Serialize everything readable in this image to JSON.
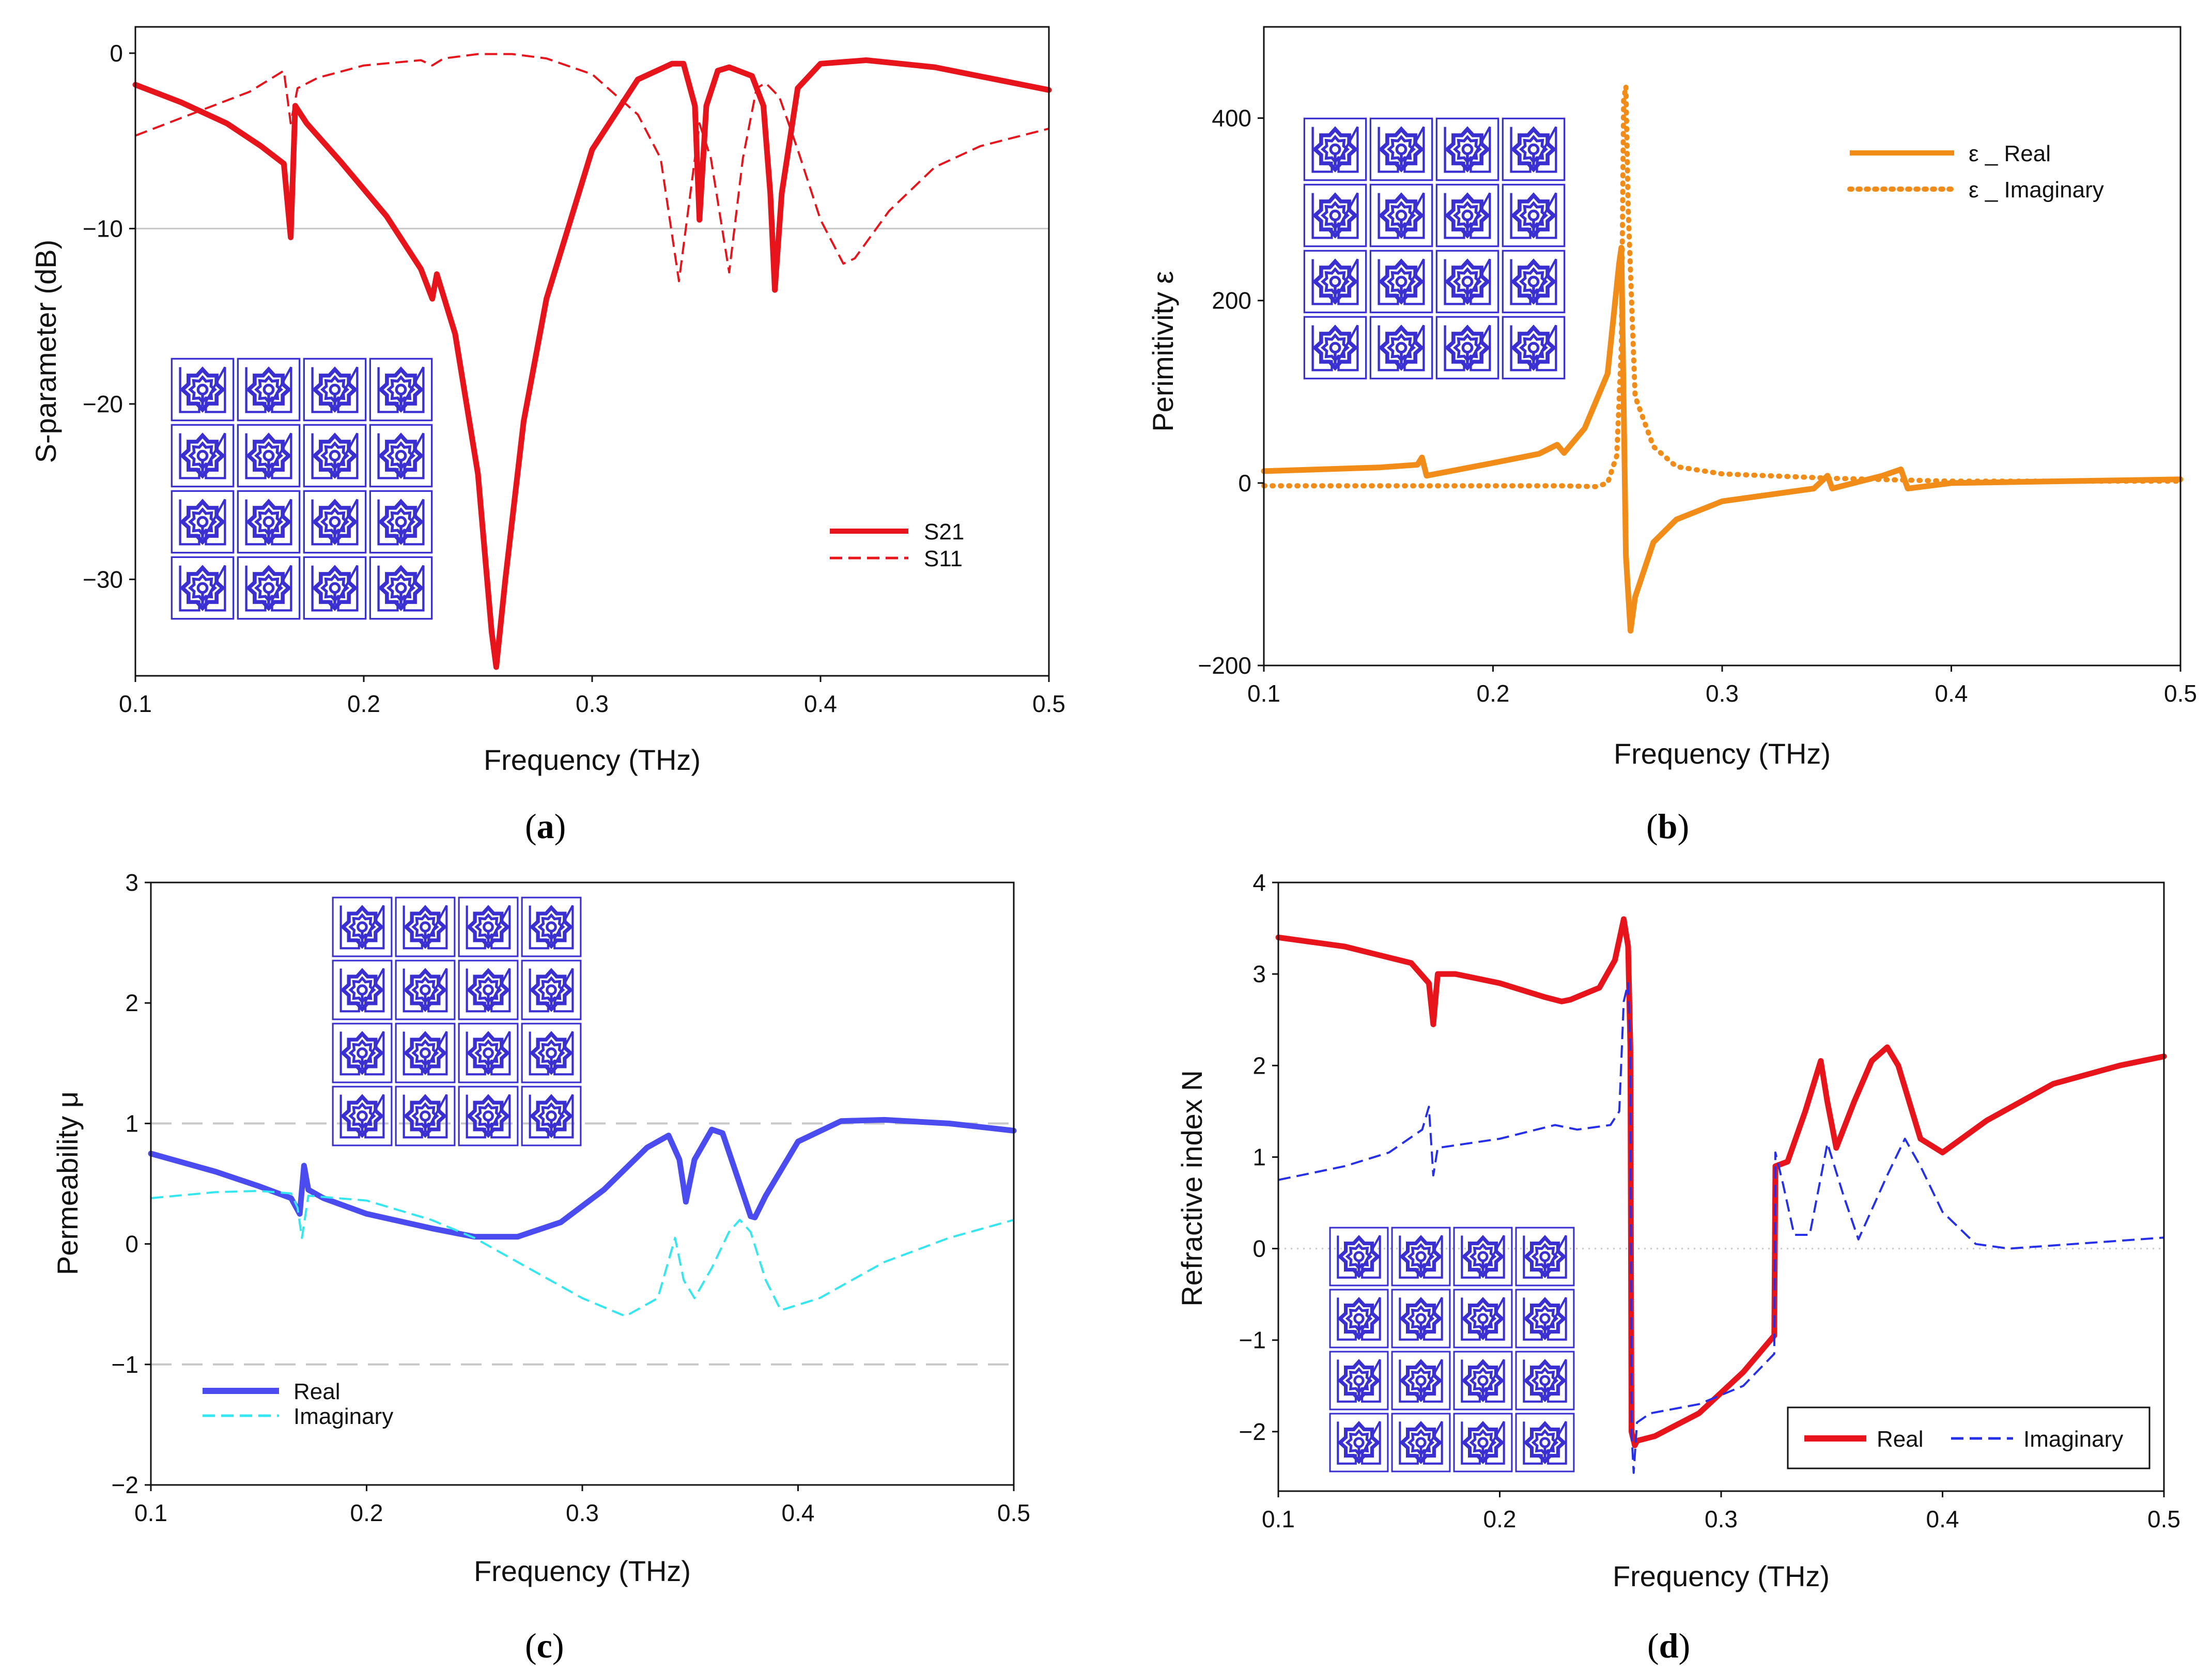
{
  "figure": {
    "captions": [
      "a",
      "b",
      "c",
      "d"
    ],
    "palette": {
      "red": "#e8141c",
      "orange": "#f28c18",
      "blue": "#4a4cf0",
      "cyan": "#33e6f0",
      "darkblue": "#2530e8",
      "motif": "#3a2fd0",
      "grid": "#c8c8c8"
    }
  },
  "chart_data": [
    {
      "id": "a",
      "type": "line",
      "title": "",
      "xlabel": "Frequency (THz)",
      "ylabel": "S-parameter (dB)",
      "xlim": [
        0.1,
        0.5
      ],
      "ylim": [
        -35.5,
        1.5
      ],
      "xticks": [
        0.1,
        0.2,
        0.3,
        0.4,
        0.5
      ],
      "xtick_labels": [
        "0.1",
        "0.2",
        "0.3",
        "0.4",
        "0.5"
      ],
      "yticks": [
        0,
        -10,
        -20,
        -30
      ],
      "ytick_labels": [
        "0",
        "-10",
        "-20",
        "-30"
      ],
      "hlines": [
        -10
      ],
      "legend": "center-right",
      "inset": "lower-left",
      "series": [
        {
          "name": "S21",
          "style": "solid",
          "color": "#e8141c",
          "x": [
            0.1,
            0.12,
            0.14,
            0.155,
            0.165,
            0.168,
            0.17,
            0.175,
            0.19,
            0.21,
            0.225,
            0.23,
            0.232,
            0.24,
            0.25,
            0.256,
            0.258,
            0.262,
            0.27,
            0.28,
            0.3,
            0.32,
            0.335,
            0.34,
            0.345,
            0.347,
            0.35,
            0.355,
            0.36,
            0.37,
            0.375,
            0.378,
            0.38,
            0.383,
            0.39,
            0.4,
            0.42,
            0.45,
            0.5
          ],
          "y": [
            -1.8,
            -2.8,
            -4.0,
            -5.3,
            -6.3,
            -10.5,
            -3.0,
            -4.0,
            -6.2,
            -9.3,
            -12.3,
            -14.0,
            -12.6,
            -16.0,
            -24.0,
            -33.0,
            -35.0,
            -30.0,
            -21.0,
            -14.0,
            -5.5,
            -1.5,
            -0.6,
            -0.6,
            -3.0,
            -9.5,
            -3.0,
            -1.0,
            -0.8,
            -1.3,
            -3.0,
            -8.0,
            -13.5,
            -8.0,
            -2.0,
            -0.6,
            -0.4,
            -0.8,
            -2.1
          ]
        },
        {
          "name": "S11",
          "style": "dashed",
          "color": "#e8141c",
          "x": [
            0.1,
            0.13,
            0.15,
            0.165,
            0.168,
            0.171,
            0.18,
            0.2,
            0.225,
            0.23,
            0.235,
            0.25,
            0.265,
            0.28,
            0.3,
            0.32,
            0.33,
            0.338,
            0.344,
            0.347,
            0.352,
            0.36,
            0.366,
            0.372,
            0.376,
            0.382,
            0.39,
            0.4,
            0.41,
            0.415,
            0.43,
            0.45,
            0.47,
            0.5
          ],
          "y": [
            -4.7,
            -3.2,
            -2.2,
            -1.0,
            -4.0,
            -2.0,
            -1.4,
            -0.7,
            -0.4,
            -0.7,
            -0.3,
            -0.05,
            -0.05,
            -0.3,
            -1.2,
            -3.5,
            -6.0,
            -13.0,
            -7.0,
            -4.0,
            -6.0,
            -12.5,
            -6.0,
            -2.0,
            -1.7,
            -2.5,
            -5.5,
            -9.5,
            -12.0,
            -11.7,
            -9.0,
            -6.5,
            -5.3,
            -4.3
          ]
        }
      ],
      "legend_entries": [
        "S21",
        "S11"
      ]
    },
    {
      "id": "b",
      "type": "line",
      "title": "",
      "xlabel": "Frequency (THz)",
      "ylabel": "Perimitivity ε",
      "xlim": [
        0.1,
        0.5
      ],
      "ylim": [
        -200,
        500
      ],
      "xticks": [
        0.1,
        0.2,
        0.3,
        0.4,
        0.5
      ],
      "xtick_labels": [
        "0.1",
        "0.2",
        "0.3",
        "0.4",
        "0.5"
      ],
      "yticks": [
        -200,
        0,
        200,
        400
      ],
      "ytick_labels": [
        "-200",
        "0",
        "200",
        "400"
      ],
      "legend": "top-right",
      "inset": "top-left",
      "series": [
        {
          "name": "ε _ Real",
          "style": "solid",
          "color": "#f28c18",
          "x": [
            0.1,
            0.15,
            0.167,
            0.169,
            0.171,
            0.2,
            0.22,
            0.228,
            0.231,
            0.24,
            0.25,
            0.255,
            0.256,
            0.258,
            0.26,
            0.262,
            0.27,
            0.28,
            0.3,
            0.34,
            0.346,
            0.348,
            0.37,
            0.378,
            0.381,
            0.4,
            0.45,
            0.5
          ],
          "y": [
            13,
            17,
            20,
            28,
            8,
            22,
            32,
            42,
            33,
            60,
            120,
            240,
            258,
            -80,
            -162,
            -125,
            -65,
            -40,
            -20,
            -6,
            8,
            -6,
            8,
            15,
            -6,
            0,
            2,
            4
          ]
        },
        {
          "name": "ε _ Imaginary",
          "style": "dotted",
          "color": "#f28c18",
          "x": [
            0.1,
            0.2,
            0.23,
            0.245,
            0.25,
            0.254,
            0.256,
            0.257,
            0.258,
            0.259,
            0.262,
            0.27,
            0.28,
            0.3,
            0.35,
            0.4,
            0.5
          ],
          "y": [
            -3,
            -3,
            -3,
            -4,
            0,
            30,
            150,
            420,
            435,
            300,
            95,
            40,
            18,
            10,
            5,
            2,
            2
          ]
        }
      ],
      "legend_entries": [
        "ε _ Real",
        "ε _ Imaginary"
      ]
    },
    {
      "id": "c",
      "type": "line",
      "title": "",
      "xlabel": "Frequency (THz)",
      "ylabel": "Permeability μ",
      "xlim": [
        0.1,
        0.5
      ],
      "ylim": [
        -2,
        3
      ],
      "xticks": [
        0.1,
        0.2,
        0.3,
        0.4,
        0.5
      ],
      "xtick_labels": [
        "0.1",
        "0.2",
        "0.3",
        "0.4",
        "0.5"
      ],
      "yticks": [
        -2,
        -1,
        0,
        1,
        2,
        3
      ],
      "ytick_labels": [
        "-2",
        "-1",
        "0",
        "1",
        "2",
        "3"
      ],
      "hlines": [
        1,
        -1
      ],
      "legend": "lower-left",
      "inset": "top-center",
      "series": [
        {
          "name": "Real",
          "style": "solid",
          "color": "#4a4cf0",
          "x": [
            0.1,
            0.13,
            0.15,
            0.165,
            0.169,
            0.171,
            0.173,
            0.18,
            0.2,
            0.23,
            0.25,
            0.27,
            0.29,
            0.31,
            0.33,
            0.34,
            0.345,
            0.348,
            0.352,
            0.36,
            0.365,
            0.372,
            0.378,
            0.38,
            0.385,
            0.4,
            0.42,
            0.44,
            0.47,
            0.5
          ],
          "y": [
            0.75,
            0.6,
            0.48,
            0.38,
            0.25,
            0.65,
            0.45,
            0.38,
            0.25,
            0.13,
            0.06,
            0.06,
            0.18,
            0.45,
            0.8,
            0.9,
            0.7,
            0.35,
            0.7,
            0.95,
            0.92,
            0.55,
            0.23,
            0.22,
            0.4,
            0.85,
            1.02,
            1.03,
            1.0,
            0.94
          ]
        },
        {
          "name": "Imaginary",
          "style": "dashed",
          "color": "#33e6f0",
          "x": [
            0.1,
            0.13,
            0.15,
            0.165,
            0.168,
            0.17,
            0.173,
            0.2,
            0.23,
            0.25,
            0.27,
            0.3,
            0.32,
            0.335,
            0.343,
            0.347,
            0.352,
            0.36,
            0.368,
            0.373,
            0.378,
            0.385,
            0.392,
            0.41,
            0.44,
            0.47,
            0.5
          ],
          "y": [
            0.38,
            0.43,
            0.44,
            0.42,
            0.3,
            0.05,
            0.4,
            0.36,
            0.2,
            0.05,
            -0.15,
            -0.45,
            -0.6,
            -0.45,
            0.05,
            -0.3,
            -0.45,
            -0.2,
            0.1,
            0.2,
            0.1,
            -0.3,
            -0.55,
            -0.45,
            -0.15,
            0.05,
            0.2
          ]
        }
      ],
      "legend_entries": [
        "Real",
        "Imaginary"
      ]
    },
    {
      "id": "d",
      "type": "line",
      "title": "",
      "xlabel": "Frequency (THz)",
      "ylabel": "Refractive index N",
      "xlim": [
        0.1,
        0.5
      ],
      "ylim": [
        -2.65,
        4
      ],
      "xticks": [
        0.1,
        0.2,
        0.3,
        0.4,
        0.5
      ],
      "xtick_labels": [
        "0.1",
        "0.2",
        "0.3",
        "0.4",
        "0.5"
      ],
      "yticks": [
        -2,
        -1,
        0,
        1,
        2,
        3,
        4
      ],
      "ytick_labels": [
        "-2",
        "-1",
        "0",
        "1",
        "2",
        "3",
        "4"
      ],
      "hlines": [
        0
      ],
      "legend": "bottom-right",
      "inset": "bottom-left",
      "series": [
        {
          "name": "Real",
          "style": "solid",
          "color": "#e8141c",
          "x": [
            0.1,
            0.13,
            0.16,
            0.168,
            0.17,
            0.172,
            0.18,
            0.2,
            0.22,
            0.228,
            0.232,
            0.245,
            0.252,
            0.256,
            0.258,
            0.259,
            0.2595,
            0.261,
            0.262,
            0.27,
            0.29,
            0.31,
            0.324,
            0.3245,
            0.33,
            0.338,
            0.345,
            0.348,
            0.352,
            0.36,
            0.368,
            0.375,
            0.38,
            0.39,
            0.4,
            0.42,
            0.45,
            0.48,
            0.5
          ],
          "y": [
            3.4,
            3.3,
            3.12,
            2.9,
            2.45,
            3.0,
            3.0,
            2.9,
            2.75,
            2.7,
            2.72,
            2.85,
            3.15,
            3.6,
            3.3,
            2.2,
            -2.0,
            -2.15,
            -2.1,
            -2.05,
            -1.8,
            -1.35,
            -0.95,
            0.9,
            0.95,
            1.5,
            2.05,
            1.6,
            1.1,
            1.6,
            2.05,
            2.2,
            2.0,
            1.2,
            1.05,
            1.4,
            1.8,
            2.0,
            2.1
          ]
        },
        {
          "name": "Imaginary",
          "style": "dashed",
          "color": "#2530e8",
          "x": [
            0.1,
            0.13,
            0.15,
            0.165,
            0.168,
            0.17,
            0.172,
            0.2,
            0.225,
            0.235,
            0.25,
            0.254,
            0.256,
            0.258,
            0.259,
            0.2595,
            0.2605,
            0.262,
            0.268,
            0.29,
            0.31,
            0.324,
            0.3245,
            0.328,
            0.333,
            0.34,
            0.348,
            0.355,
            0.362,
            0.375,
            0.383,
            0.39,
            0.4,
            0.415,
            0.43,
            0.5
          ],
          "y": [
            0.75,
            0.9,
            1.05,
            1.3,
            1.55,
            0.8,
            1.1,
            1.2,
            1.35,
            1.3,
            1.35,
            1.5,
            2.7,
            2.9,
            2.2,
            -2.0,
            -2.45,
            -1.9,
            -1.8,
            -1.7,
            -1.5,
            -1.15,
            1.05,
            0.7,
            0.15,
            0.15,
            1.15,
            0.6,
            0.1,
            0.8,
            1.2,
            0.9,
            0.4,
            0.05,
            0.0,
            0.12
          ]
        }
      ],
      "legend_entries": [
        "Real",
        "Imaginary"
      ]
    }
  ]
}
